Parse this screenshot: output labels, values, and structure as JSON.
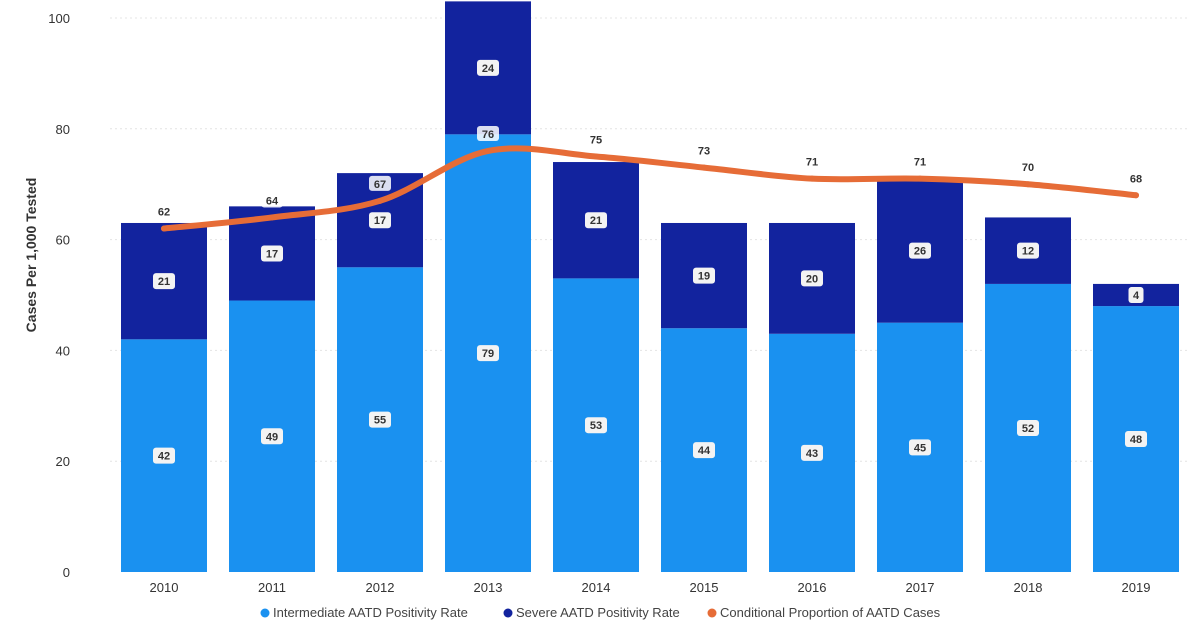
{
  "chart_data": {
    "type": "bar",
    "stacked": true,
    "title": "",
    "xlabel": "",
    "ylabel": "Cases Per 1,000 Tested",
    "ylim": [
      0,
      100
    ],
    "yticks": [
      "0",
      "20",
      "40",
      "60",
      "80",
      "100"
    ],
    "categories": [
      "2010",
      "2011",
      "2012",
      "2013",
      "2014",
      "2015",
      "2016",
      "2017",
      "2018",
      "2019"
    ],
    "series": [
      {
        "name": "Intermediate AATD Positivity Rate",
        "kind": "bar",
        "color": "#1a91f0",
        "values": [
          42,
          49,
          55,
          79,
          53,
          44,
          43,
          45,
          52,
          48
        ],
        "labels": [
          "42",
          "49",
          "55",
          "79",
          "53",
          "44",
          "43",
          "45",
          "52",
          "48"
        ]
      },
      {
        "name": "Severe AATD Positivity Rate",
        "kind": "bar",
        "color": "#12239e",
        "values": [
          21,
          17,
          17,
          24,
          21,
          19,
          20,
          26,
          12,
          4
        ],
        "labels": [
          "21",
          "17",
          "17",
          "24",
          "21",
          "19",
          "20",
          "26",
          "12",
          "4"
        ]
      },
      {
        "name": "Conditional Proportion of AATD Cases",
        "kind": "line",
        "color": "#e66c37",
        "values": [
          62,
          64,
          67,
          76,
          75,
          73,
          71,
          71,
          70,
          68
        ],
        "labels": [
          "62",
          "64",
          "67",
          "76",
          "75",
          "73",
          "71",
          "71",
          "70",
          "68"
        ]
      }
    ],
    "legend": {
      "position": "bottom",
      "entries": [
        "Intermediate AATD Positivity Rate",
        "Severe AATD Positivity Rate",
        "Conditional Proportion of AATD Cases"
      ]
    },
    "grid": true,
    "colors": {
      "grid": "#e4e4e4",
      "label_bg": "#f3f3f3",
      "text": "#333333"
    }
  }
}
